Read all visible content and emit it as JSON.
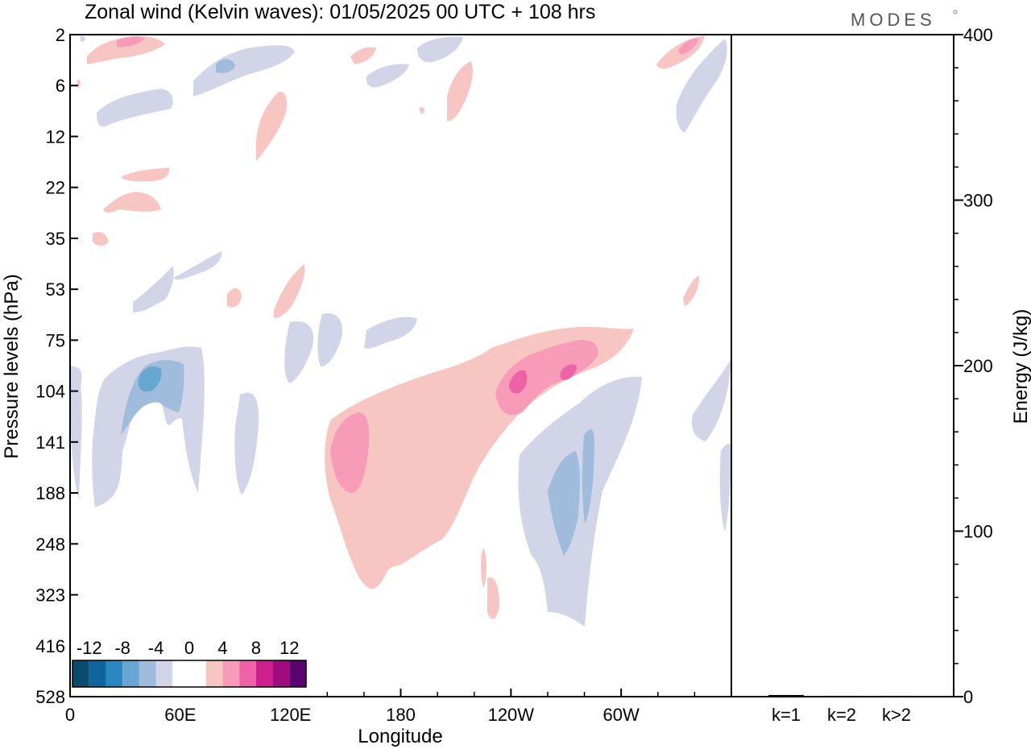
{
  "title": "Zonal wind (Kelvin waves):  01/05/2025  00 UTC  + 108 hrs",
  "logo": "MODES",
  "chart_data": [
    {
      "type": "heatmap",
      "title": "Zonal wind (Kelvin waves):  01/05/2025  00 UTC  + 108 hrs",
      "xlabel": "Longitude",
      "ylabel": "Pressure levels (hPa)",
      "x_ticks": [
        "0",
        "60E",
        "120E",
        "180",
        "120W",
        "60W"
      ],
      "y_ticks": [
        "2",
        "6",
        "12",
        "22",
        "35",
        "53",
        "75",
        "104",
        "141",
        "188",
        "248",
        "323",
        "416",
        "528"
      ],
      "colorbar": {
        "labels": [
          "-12",
          "-8",
          "-4",
          "0",
          "4",
          "8",
          "12"
        ],
        "colors": [
          "#0b4a6f",
          "#0f669e",
          "#2a87c2",
          "#66a6d0",
          "#9fbcdc",
          "#d2d5e8",
          "#ffffff",
          "#ffffff",
          "#f7c6c3",
          "#f79bb8",
          "#ee62a6",
          "#cf1f8f",
          "#9e0c7d",
          "#5b0471"
        ]
      },
      "contour_colors": {
        "neg1": "#d2d5e8",
        "neg2": "#9fbcdc",
        "neg3": "#66a6d0",
        "pos1": "#f7c6c3",
        "pos2": "#f79bb8",
        "pos3": "#ee62a6"
      }
    },
    {
      "type": "bar",
      "ylabel": "Energy (J/kg)",
      "categories": [
        "k=1",
        "k=2",
        "k>2"
      ],
      "values": [
        1,
        0.5,
        0.5
      ],
      "ylim": [
        0,
        400
      ],
      "y_ticks": [
        "0",
        "100",
        "200",
        "300",
        "400"
      ]
    }
  ]
}
